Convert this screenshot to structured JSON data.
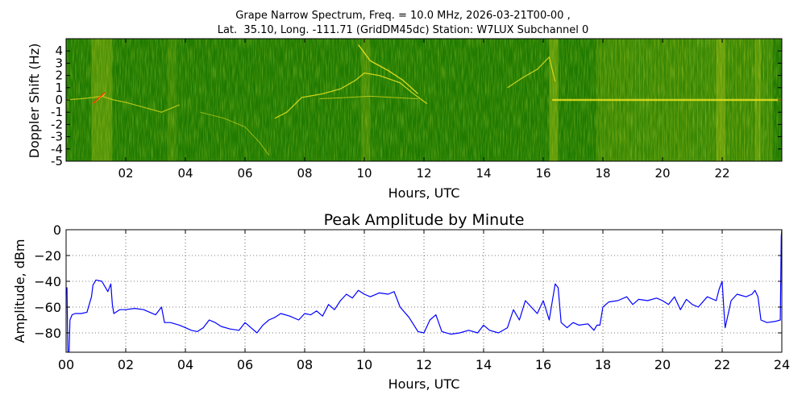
{
  "spectrogram": {
    "title_line1": "Grape Narrow Spectrum, Freq. = 10.0 MHz, 2026-03-21T00-00 ,",
    "title_line2": "Lat.  35.10, Long. -111.71 (GridDM45dc) Station: W7LUX Subchannel 0",
    "ylabel": "Doppler Shift (Hz)",
    "xlabel": "Hours, UTC",
    "yticks": [
      "4",
      "3",
      "2",
      "1",
      "0",
      "-1",
      "-2",
      "-3",
      "-4",
      "-5"
    ],
    "ytick_values": [
      4,
      3,
      2,
      1,
      0,
      -1,
      -2,
      -3,
      -4,
      -5
    ],
    "xticks": [
      "02",
      "04",
      "06",
      "08",
      "10",
      "12",
      "14",
      "16",
      "18",
      "20",
      "22"
    ],
    "xtick_values": [
      2,
      4,
      6,
      8,
      10,
      12,
      14,
      16,
      18,
      20,
      22
    ],
    "ylim": [
      -5,
      5
    ],
    "xlim": [
      0,
      24
    ],
    "colors": {
      "background": "#1f7a00",
      "signal": "#e8e020",
      "hot": "#ff3000"
    }
  },
  "chart_data": {
    "type": "line",
    "title": "Peak Amplitude by Minute",
    "xlabel": "Hours, UTC",
    "ylabel": "Amplitude, dBm",
    "xlim": [
      0,
      24
    ],
    "ylim": [
      -95,
      0
    ],
    "xticks": [
      "00",
      "02",
      "04",
      "06",
      "08",
      "10",
      "12",
      "14",
      "16",
      "18",
      "20",
      "22",
      "24"
    ],
    "xtick_values": [
      0,
      2,
      4,
      6,
      8,
      10,
      12,
      14,
      16,
      18,
      20,
      22,
      24
    ],
    "yticks": [
      "0",
      "−20",
      "−40",
      "−60",
      "−80"
    ],
    "ytick_values": [
      0,
      -20,
      -40,
      -60,
      -80
    ],
    "grid": true,
    "line_color": "#0000ff",
    "series": [
      {
        "x": [
          0.0,
          0.03,
          0.06,
          0.1,
          0.13,
          0.2,
          0.3,
          0.5,
          0.7,
          0.85,
          0.9,
          1.0,
          1.2,
          1.4,
          1.5,
          1.55,
          1.6,
          1.8,
          2.0,
          2.3,
          2.6,
          3.0,
          3.2,
          3.3,
          3.5,
          3.8,
          4.0,
          4.2,
          4.4,
          4.6,
          4.8,
          5.0,
          5.2,
          5.5,
          5.8,
          6.0,
          6.2,
          6.4,
          6.6,
          6.8,
          7.0,
          7.2,
          7.5,
          7.8,
          8.0,
          8.2,
          8.4,
          8.6,
          8.8,
          9.0,
          9.2,
          9.4,
          9.6,
          9.8,
          10.0,
          10.2,
          10.5,
          10.8,
          11.0,
          11.2,
          11.5,
          11.8,
          12.0,
          12.2,
          12.4,
          12.6,
          12.9,
          13.2,
          13.5,
          13.8,
          14.0,
          14.2,
          14.5,
          14.8,
          15.0,
          15.2,
          15.4,
          15.6,
          15.8,
          16.0,
          16.2,
          16.4,
          16.5,
          16.6,
          16.8,
          17.0,
          17.2,
          17.5,
          17.7,
          17.8,
          17.9,
          18.0,
          18.2,
          18.5,
          18.8,
          19.0,
          19.2,
          19.5,
          19.8,
          20.0,
          20.2,
          20.4,
          20.6,
          20.8,
          21.0,
          21.2,
          21.5,
          21.8,
          21.9,
          22.0,
          22.05,
          22.1,
          22.3,
          22.5,
          22.8,
          23.0,
          23.1,
          23.2,
          23.3,
          23.5,
          23.8,
          23.95,
          23.98,
          24.0
        ],
        "y": [
          -50,
          -45,
          -95,
          -95,
          -70,
          -66,
          -65,
          -65,
          -64,
          -52,
          -43,
          -39,
          -40,
          -48,
          -42,
          -58,
          -65,
          -62,
          -62,
          -61,
          -62,
          -66,
          -60,
          -72,
          -72,
          -74,
          -76,
          -78,
          -79,
          -76,
          -70,
          -72,
          -75,
          -77,
          -78,
          -72,
          -76,
          -80,
          -74,
          -70,
          -68,
          -65,
          -67,
          -70,
          -65,
          -66,
          -63,
          -67,
          -58,
          -62,
          -55,
          -50,
          -53,
          -47,
          -50,
          -52,
          -49,
          -50,
          -48,
          -60,
          -68,
          -79,
          -80,
          -70,
          -66,
          -79,
          -81,
          -80,
          -78,
          -80,
          -74,
          -78,
          -80,
          -76,
          -62,
          -70,
          -55,
          -60,
          -65,
          -55,
          -70,
          -42,
          -45,
          -72,
          -76,
          -72,
          -74,
          -73,
          -78,
          -74,
          -74,
          -60,
          -56,
          -55,
          -52,
          -58,
          -54,
          -55,
          -53,
          -55,
          -58,
          -52,
          -62,
          -54,
          -58,
          -60,
          -52,
          -55,
          -46,
          -40,
          -60,
          -76,
          -55,
          -50,
          -52,
          -50,
          -47,
          -52,
          -70,
          -72,
          -71,
          -70,
          -5,
          0
        ]
      }
    ]
  }
}
